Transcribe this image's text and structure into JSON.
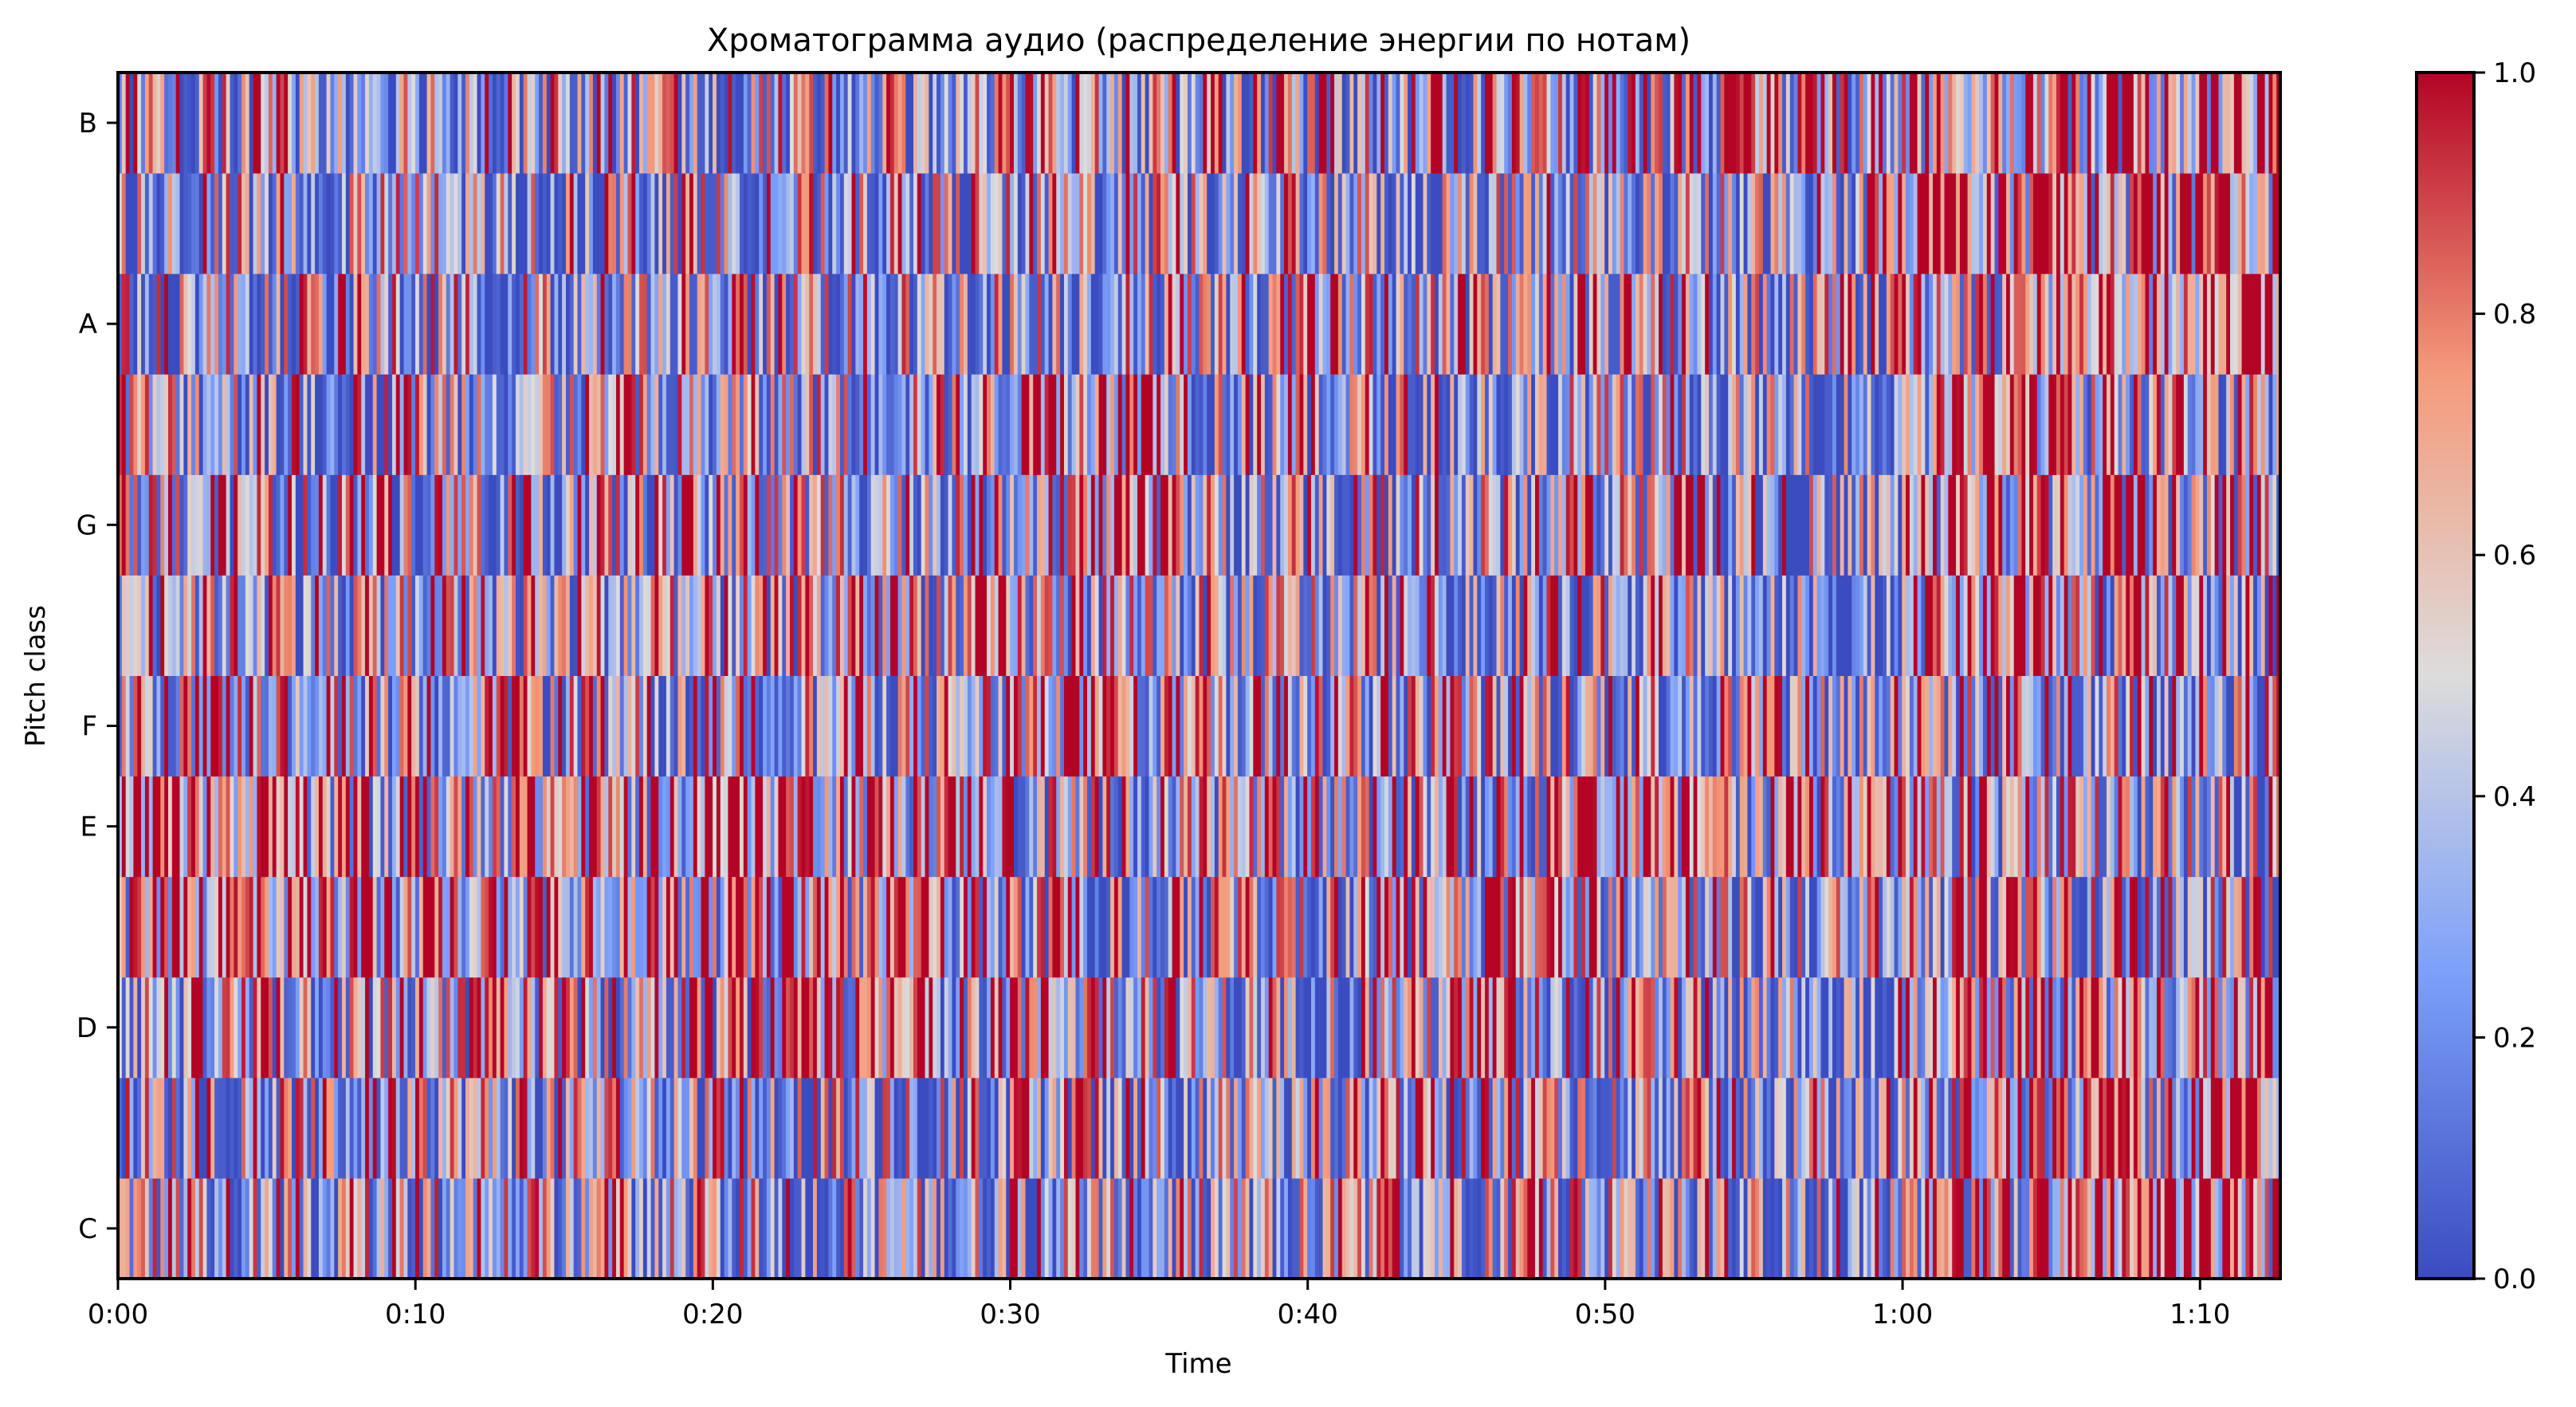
{
  "chart_data": {
    "type": "heatmap",
    "title": "Хроматограмма аудио (распределение энергии по нотам)",
    "xlabel": "Time",
    "ylabel": "Pitch class",
    "x_tick_labels": [
      "0:00",
      "0:10",
      "0:20",
      "0:30",
      "0:40",
      "0:50",
      "1:00",
      "1:10"
    ],
    "x_tick_seconds": [
      0,
      10,
      20,
      30,
      40,
      50,
      60,
      70
    ],
    "xlim_seconds": [
      0,
      72.7
    ],
    "y_rows_bottom_to_top": [
      "C",
      "C#",
      "D",
      "D#",
      "E",
      "F",
      "F#",
      "G",
      "G#",
      "A",
      "A#",
      "B"
    ],
    "y_tick_labels": [
      "C",
      "D",
      "E",
      "F",
      "G",
      "A",
      "B"
    ],
    "colormap": "coolwarm",
    "colormap_colors": [
      "#3b4cc0",
      "#7b9ff9",
      "#dddcdc",
      "#f49a7b",
      "#b40426"
    ],
    "colorbar": {
      "range": [
        0,
        1
      ],
      "tick_labels": [
        "0.0",
        "0.2",
        "0.4",
        "0.6",
        "0.8",
        "1.0"
      ]
    },
    "segment_seconds": 6,
    "approx_segment_means_top_to_bottom": {
      "B": [
        0.5,
        0.45,
        0.45,
        0.45,
        0.4,
        0.45,
        0.45,
        0.5,
        0.55,
        0.6,
        0.65,
        0.7
      ],
      "A#": [
        0.4,
        0.4,
        0.35,
        0.4,
        0.35,
        0.45,
        0.4,
        0.35,
        0.35,
        0.3,
        0.75,
        0.7
      ],
      "A": [
        0.4,
        0.4,
        0.4,
        0.5,
        0.4,
        0.4,
        0.45,
        0.4,
        0.55,
        0.35,
        0.6,
        0.7
      ],
      "G#": [
        0.45,
        0.45,
        0.5,
        0.4,
        0.5,
        0.7,
        0.45,
        0.3,
        0.35,
        0.25,
        0.7,
        0.55
      ],
      "G": [
        0.55,
        0.5,
        0.45,
        0.45,
        0.5,
        0.65,
        0.4,
        0.4,
        0.6,
        0.3,
        0.7,
        0.6
      ],
      "F#": [
        0.55,
        0.5,
        0.45,
        0.4,
        0.55,
        0.5,
        0.4,
        0.35,
        0.45,
        0.2,
        0.7,
        0.55
      ],
      "F": [
        0.7,
        0.55,
        0.55,
        0.45,
        0.5,
        0.65,
        0.55,
        0.45,
        0.45,
        0.4,
        0.55,
        0.45
      ],
      "E": [
        0.8,
        0.6,
        0.65,
        0.75,
        0.7,
        0.45,
        0.5,
        0.5,
        0.8,
        0.6,
        0.45,
        0.4
      ],
      "D#": [
        0.7,
        0.65,
        0.7,
        0.6,
        0.6,
        0.45,
        0.45,
        0.6,
        0.6,
        0.35,
        0.55,
        0.45
      ],
      "D": [
        0.5,
        0.5,
        0.5,
        0.55,
        0.55,
        0.6,
        0.35,
        0.55,
        0.45,
        0.25,
        0.6,
        0.65
      ],
      "C#": [
        0.4,
        0.45,
        0.45,
        0.4,
        0.35,
        0.45,
        0.3,
        0.55,
        0.5,
        0.25,
        0.6,
        0.75
      ],
      "C": [
        0.5,
        0.45,
        0.4,
        0.35,
        0.35,
        0.4,
        0.35,
        0.55,
        0.45,
        0.3,
        0.65,
        0.8
      ]
    }
  }
}
